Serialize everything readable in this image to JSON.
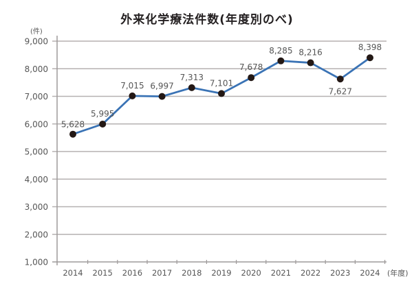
{
  "chart_data": {
    "type": "line",
    "title": "外来化学療法件数(年度別のべ)",
    "xlabel": "(年度)",
    "ylabel": "(件)",
    "categories": [
      "2014",
      "2015",
      "2016",
      "2017",
      "2018",
      "2019",
      "2020",
      "2021",
      "2022",
      "2023",
      "2024"
    ],
    "series": [
      {
        "name": "外来化学療法件数",
        "values": [
          5628,
          5995,
          7015,
          6997,
          7313,
          7101,
          7678,
          8285,
          8216,
          7627,
          8398
        ]
      }
    ],
    "data_labels": [
      "5,628",
      "5,995",
      "7,015",
      "6,997",
      "7,313",
      "7,101",
      "7,678",
      "8,285",
      "8,216",
      "7,627",
      "8,398"
    ],
    "yticks": [
      "1,000",
      "2,000",
      "3,000",
      "4,000",
      "5,000",
      "6,000",
      "7,000",
      "8,000",
      "9,000"
    ],
    "ylim": [
      1000,
      9000
    ],
    "grid": true,
    "legend": "none",
    "colors": {
      "line": "#3a73b5",
      "marker": "#231815",
      "grid": "#b5b1b1",
      "axis": "#9e9a9a",
      "text": "#555555"
    }
  }
}
